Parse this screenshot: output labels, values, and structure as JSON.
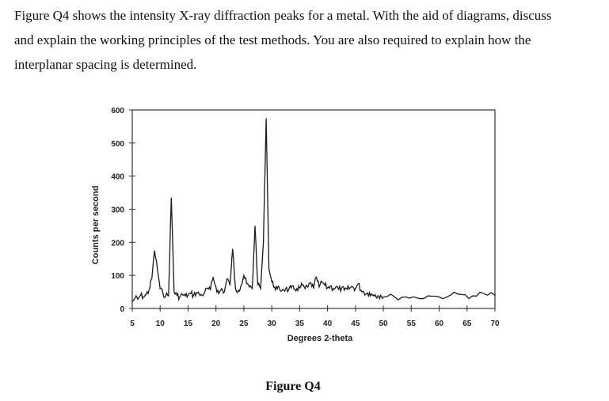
{
  "question": {
    "lines": [
      "Figure Q4 shows the intensity X-ray diffraction peaks for a metal. With the aid of diagrams, discuss",
      "and explain the working principles of the test methods. You are also required to explain how the",
      "interplanar spacing is determined."
    ]
  },
  "figure_caption": "Figure Q4",
  "chart_data": {
    "type": "line",
    "title": "",
    "xlabel": "Degrees 2-theta",
    "ylabel": "Counts per second",
    "xlim": [
      5,
      70
    ],
    "ylim": [
      0,
      600
    ],
    "x_ticks": [
      "5",
      "10",
      "15",
      "20",
      "25",
      "30",
      "35",
      "40",
      "45",
      "50",
      "55",
      "60",
      "65",
      "70"
    ],
    "y_ticks": [
      "0",
      "100",
      "200",
      "300",
      "400",
      "500",
      "600"
    ],
    "grid": false,
    "series": [
      {
        "x": [
          5,
          5.5,
          6,
          6.5,
          7,
          7.5,
          8,
          8.5,
          9,
          9.5,
          10,
          10.5,
          11,
          11.5,
          12,
          12.5,
          13,
          13.5,
          14,
          14.5,
          15,
          15.5,
          16,
          16.5,
          17,
          17.5,
          18,
          18.5,
          19,
          19.5,
          20,
          20.5,
          21,
          21.5,
          22,
          22.5,
          23,
          23.5,
          24,
          24.5,
          25,
          25.5,
          26,
          26.5,
          27,
          27.5,
          28,
          28.5,
          29,
          29.5,
          30,
          30.5,
          31,
          31.5,
          32,
          32.5,
          33,
          33.5,
          34,
          34.5,
          35,
          35.5,
          36,
          36.5,
          37,
          37.5,
          38,
          38.5,
          39,
          39.5,
          40,
          40.5,
          41,
          41.5,
          42,
          42.5,
          43,
          43.5,
          44,
          44.5,
          45,
          45.5,
          46,
          46.5,
          47,
          47.5,
          48,
          48.5,
          49,
          49.5,
          50,
          52,
          54,
          56,
          58,
          60,
          62,
          64,
          66,
          68,
          70
        ],
        "y": [
          20,
          32,
          28,
          40,
          35,
          42,
          55,
          90,
          175,
          120,
          60,
          45,
          40,
          38,
          335,
          50,
          40,
          35,
          42,
          38,
          40,
          45,
          40,
          48,
          42,
          40,
          50,
          60,
          55,
          95,
          65,
          45,
          60,
          50,
          90,
          70,
          180,
          60,
          55,
          70,
          100,
          75,
          65,
          60,
          250,
          70,
          60,
          200,
          575,
          120,
          80,
          65,
          60,
          55,
          58,
          60,
          55,
          62,
          58,
          60,
          62,
          70,
          60,
          65,
          78,
          60,
          95,
          65,
          80,
          70,
          62,
          68,
          60,
          65,
          58,
          60,
          55,
          58,
          62,
          65,
          60,
          75,
          55,
          50,
          45,
          48,
          40,
          42,
          38,
          40,
          35,
          35,
          35,
          32,
          38,
          35,
          40,
          42,
          38,
          45,
          40
        ]
      }
    ]
  }
}
